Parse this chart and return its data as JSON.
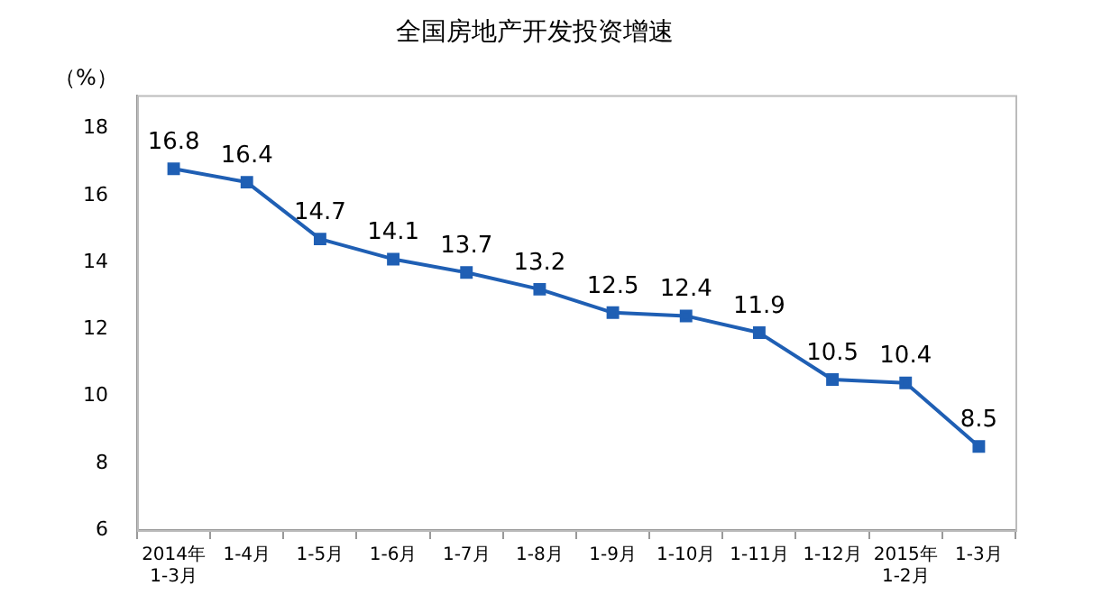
{
  "chart_data": {
    "type": "line",
    "title": "全国房地产开发投资增速",
    "ylabel": "（%）",
    "categories": [
      "2014年\n1-3月",
      "1-4月",
      "1-5月",
      "1-6月",
      "1-7月",
      "1-8月",
      "1-9月",
      "1-10月",
      "1-11月",
      "1-12月",
      "2015年\n1-2月",
      "1-3月"
    ],
    "series": [
      {
        "color": "#1f5fb4",
        "values": [
          16.8,
          16.4,
          14.7,
          14.1,
          13.7,
          13.2,
          12.5,
          12.4,
          11.9,
          10.5,
          10.4,
          8.5
        ]
      }
    ],
    "ylim": [
      6,
      19
    ],
    "yticks": [
      6,
      8,
      10,
      12,
      14,
      16,
      18
    ],
    "grid": false,
    "legend": false,
    "marker": "square",
    "line_style": "solid",
    "data_labels": true
  }
}
